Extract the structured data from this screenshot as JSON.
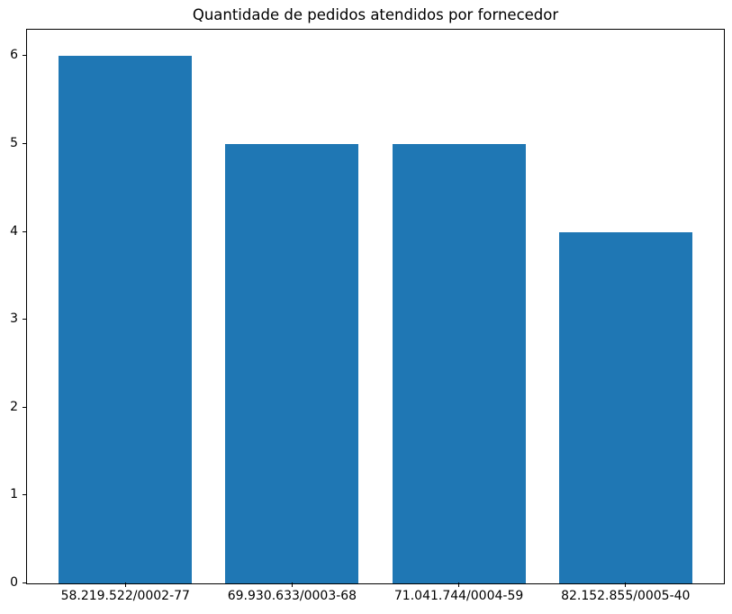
{
  "chart_data": {
    "type": "bar",
    "title": "Quantidade de pedidos atendidos por fornecedor",
    "categories": [
      "58.219.522/0002-77",
      "69.930.633/0003-68",
      "71.041.744/0004-59",
      "82.152.855/0005-40"
    ],
    "values": [
      6,
      5,
      5,
      4
    ],
    "xlabel": "",
    "ylabel": "",
    "ylim": [
      0,
      6.3
    ],
    "yticks": [
      0,
      1,
      2,
      3,
      4,
      5,
      6
    ],
    "bar_color": "#1f77b4",
    "bar_width": 0.8,
    "grid": false,
    "legend": "none",
    "background_color": "#ffffff",
    "spine_color": "#000000",
    "text_color": "#000000"
  }
}
